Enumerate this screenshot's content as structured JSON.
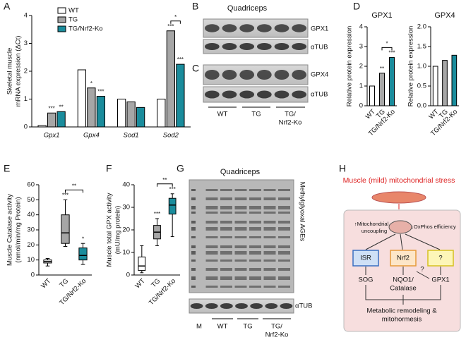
{
  "panels": [
    "A",
    "B",
    "C",
    "D",
    "E",
    "F",
    "G",
    "H"
  ],
  "chart_data": [
    {
      "type": "bar",
      "ylabel": [
        "Skeletal muscle",
        "mRNA expression (ΔCt)"
      ],
      "categories": [
        "Gpx1",
        "Gpx4",
        "Sod1",
        "Sod2"
      ],
      "series": [
        {
          "name": "WT",
          "color": "#ffffff",
          "values": [
            0.05,
            2.05,
            1.0,
            1.0
          ]
        },
        {
          "name": "TG",
          "color": "#a6a6a6",
          "values": [
            0.5,
            1.4,
            0.9,
            3.45
          ],
          "annotations": [
            "***",
            "*",
            null,
            "***"
          ]
        },
        {
          "name": "TG/Nrf2-Ko",
          "color": "#1a8c9c",
          "values": [
            0.55,
            1.1,
            0.7,
            2.25
          ],
          "annotations": [
            "**",
            "***",
            null,
            "***"
          ]
        }
      ],
      "ylim": [
        0,
        4
      ],
      "yticks": [
        0,
        1,
        2,
        3,
        4
      ],
      "brackets": [
        {
          "text": "*"
        }
      ]
    },
    {
      "type": "bar",
      "title": "GPX1",
      "ylabel": [
        "Relative protein expression"
      ],
      "categories": [
        "WT",
        "TG",
        "TG/Nrf2-Ko"
      ],
      "values": [
        1.0,
        1.65,
        2.45
      ],
      "colors": [
        "#ffffff",
        "#a6a6a6",
        "#1a8c9c"
      ],
      "annotations": [
        null,
        "**",
        "***"
      ],
      "ylim": [
        0,
        4
      ],
      "yticks": [
        0,
        1,
        2,
        3,
        4
      ],
      "brackets": [
        {
          "text": "*"
        }
      ]
    },
    {
      "type": "bar",
      "title": "GPX4",
      "ylabel": [
        "Relative protein expression"
      ],
      "categories": [
        "WT",
        "TG",
        "TG/Nrf2-Ko"
      ],
      "values": [
        1.0,
        1.15,
        1.28
      ],
      "colors": [
        "#ffffff",
        "#a6a6a6",
        "#1a8c9c"
      ],
      "ylim": [
        0,
        2
      ],
      "yticks": [
        {
          "value": 0,
          "label": "0.0"
        },
        {
          "value": 0.5,
          "label": "0.5"
        },
        {
          "value": 1,
          "label": "1.0"
        },
        {
          "value": 1.5,
          "label": "1.5"
        },
        {
          "value": 2,
          "label": "2.0"
        }
      ]
    },
    {
      "type": "box",
      "ylabel": [
        "Muscle Catalase activity",
        "(nmol/min/mg Protein)"
      ],
      "categories": [
        "WT",
        "TG",
        "TG/Nrf2-Ko"
      ],
      "colors": [
        "#ffffff",
        "#a6a6a6",
        "#1a8c9c"
      ],
      "boxes": [
        {
          "min": 6,
          "q1": 8,
          "median": 9,
          "q3": 10,
          "max": 11
        },
        {
          "min": 19,
          "q1": 21,
          "median": 28,
          "q3": 40,
          "max": 50
        },
        {
          "min": 7,
          "q1": 10,
          "median": 13,
          "q3": 18,
          "max": 21
        }
      ],
      "annotations": [
        null,
        "***",
        "*"
      ],
      "ylim": [
        0,
        60
      ],
      "yticks": [
        0,
        10,
        20,
        30,
        40,
        50,
        60
      ],
      "brackets": [
        {
          "text": "**"
        }
      ]
    },
    {
      "type": "box",
      "ylabel": [
        "Muscle total GPX activity",
        "(mU/mg protein)"
      ],
      "categories": [
        "WT",
        "TG",
        "TG/Nrf2-Ko"
      ],
      "colors": [
        "#ffffff",
        "#a6a6a6",
        "#1a8c9c"
      ],
      "boxes": [
        {
          "min": 1,
          "q1": 2,
          "median": 4,
          "q3": 8,
          "max": 13
        },
        {
          "min": 13,
          "q1": 16,
          "median": 19,
          "q3": 22,
          "max": 25
        },
        {
          "min": 17,
          "q1": 27,
          "median": 31,
          "q3": 34,
          "max": 36
        }
      ],
      "annotations": [
        null,
        "***",
        "***"
      ],
      "ylim": [
        0,
        40
      ],
      "yticks": [
        0,
        10,
        20,
        30,
        40
      ],
      "brackets": [
        {
          "text": "**"
        }
      ]
    }
  ],
  "blots": {
    "b_title": "Quadriceps",
    "b_bands": [
      "GPX1",
      "αTUB"
    ],
    "c_bands": [
      "GPX4",
      "αTUB"
    ],
    "lanes": [
      "WT",
      "TG",
      "TG/",
      "Nrf2-Ko"
    ],
    "g_title": "Quadriceps",
    "g_bands": [
      "Methylglyoxal AGEs",
      "αTUB"
    ],
    "g_lanes": [
      "M",
      "WT",
      "TG",
      "TG/",
      "Nrf2-Ko"
    ]
  },
  "diagram": {
    "title": "Muscle (mild) mitochondrial stress",
    "left_note": [
      "↑Mitochondrial",
      "uncoupling"
    ],
    "right_note": "↓OxPhos efficiency",
    "boxes": [
      "ISR",
      "Nrf2",
      "?"
    ],
    "outputs": [
      "SOG",
      "NQO1/",
      "Catalase",
      "GPX1"
    ],
    "question": "?",
    "result": [
      "Metabolic remodeling &",
      "mitohormesis"
    ]
  }
}
